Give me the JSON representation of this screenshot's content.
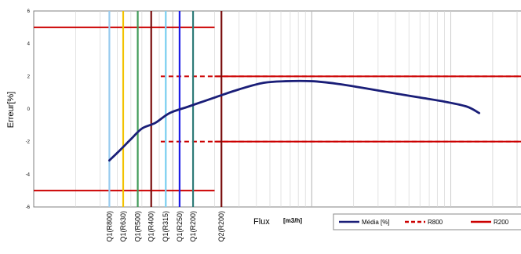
{
  "chart_data": {
    "type": "line",
    "title": "",
    "xlabel": "Flux",
    "xunit": "[m3/h]",
    "ylabel": "Erreur[%]",
    "x_scale": "log",
    "ylim": [
      -6,
      6
    ],
    "yticks": [
      "6",
      "4",
      "2",
      "0",
      "-2",
      "-4",
      "-6"
    ],
    "grid": "vertical",
    "series": [
      {
        "name": "Média [%]",
        "color": "#1a1e78",
        "points": [
          {
            "x": 0.0035,
            "y": -3.15
          },
          {
            "x": 0.0042,
            "y": -2.5
          },
          {
            "x": 0.005,
            "y": -1.85
          },
          {
            "x": 0.006,
            "y": -1.2
          },
          {
            "x": 0.0075,
            "y": -0.85
          },
          {
            "x": 0.0095,
            "y": -0.25
          },
          {
            "x": 0.013,
            "y": 0.15
          },
          {
            "x": 0.02,
            "y": 0.7
          },
          {
            "x": 0.03,
            "y": 1.2
          },
          {
            "x": 0.045,
            "y": 1.6
          },
          {
            "x": 0.065,
            "y": 1.7
          },
          {
            "x": 0.1,
            "y": 1.7
          },
          {
            "x": 0.15,
            "y": 1.55
          },
          {
            "x": 0.25,
            "y": 1.25
          },
          {
            "x": 0.4,
            "y": 0.95
          },
          {
            "x": 0.6,
            "y": 0.7
          },
          {
            "x": 0.9,
            "y": 0.45
          },
          {
            "x": 1.3,
            "y": 0.15
          },
          {
            "x": 1.6,
            "y": -0.25
          }
        ]
      }
    ],
    "limit_lines": [
      {
        "name": "R800",
        "style": "dashed",
        "color": "#cc0000",
        "y": 2,
        "x_from": 0.0082
      },
      {
        "name": "R800",
        "style": "dashed",
        "color": "#cc0000",
        "y": -2,
        "x_from": 0.0082
      },
      {
        "name": "R200",
        "style": "solid",
        "color": "#cc0000",
        "y": 5,
        "x_to": 0.02
      },
      {
        "name": "R200",
        "style": "solid",
        "color": "#cc0000",
        "y": -5,
        "x_to": 0.02
      },
      {
        "name": "R200",
        "style": "solid",
        "color": "#cc0000",
        "y": 2,
        "x_from": 0.02
      },
      {
        "name": "R200",
        "style": "solid",
        "color": "#cc0000",
        "y": -2,
        "x_from": 0.02
      }
    ],
    "markers": [
      {
        "label": "Q1(R800)",
        "x": 0.0035,
        "color": "#99ccf0"
      },
      {
        "label": "Q1(R630)",
        "x": 0.0044,
        "color": "#f2c200"
      },
      {
        "label": "Q1(R500)",
        "x": 0.0056,
        "color": "#3f9a57"
      },
      {
        "label": "Q1(R400)",
        "x": 0.007,
        "color": "#7a0d0d"
      },
      {
        "label": "Q1(R315)",
        "x": 0.0089,
        "color": "#7dd1f2"
      },
      {
        "label": "Q1(R250)",
        "x": 0.0112,
        "color": "#1d1de6"
      },
      {
        "label": "Q1(R200)",
        "x": 0.014,
        "color": "#2e7b78"
      },
      {
        "label": "Q2(R200)",
        "x": 0.0224,
        "color": "#7a0d0d"
      }
    ],
    "legend": {
      "placement": "bottom-right",
      "entries": [
        {
          "label": "Média [%]",
          "style": "solid",
          "color": "#1a1e78"
        },
        {
          "label": "R800",
          "style": "dashed",
          "color": "#cc0000"
        },
        {
          "label": "R200",
          "style": "solid",
          "color": "#cc0000"
        }
      ]
    }
  }
}
